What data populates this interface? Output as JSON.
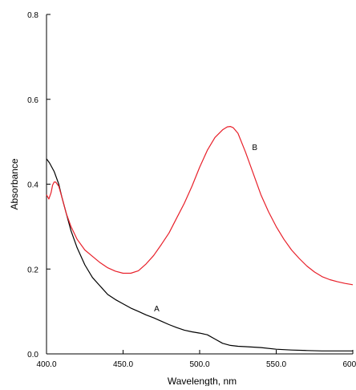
{
  "chart_data": {
    "type": "line",
    "title": "",
    "xlabel": "Wavelength, nm",
    "ylabel": "Absorbance",
    "xlim": [
      400,
      600
    ],
    "ylim": [
      0,
      0.8
    ],
    "x_ticks": [
      400,
      450,
      500,
      550,
      600
    ],
    "x_tick_labels": [
      "400.0",
      "450.0",
      "500.0",
      "550.0",
      "600.0"
    ],
    "y_ticks": [
      0,
      0.2,
      0.4,
      0.6,
      0.8
    ],
    "y_tick_labels": [
      "0.0",
      "0.2",
      "0.4",
      "0.6",
      "0.8"
    ],
    "grid": false,
    "legend": "none",
    "series": [
      {
        "name": "A",
        "color": "#000000",
        "points": [
          [
            400,
            0.46
          ],
          [
            402,
            0.45
          ],
          [
            405,
            0.43
          ],
          [
            408,
            0.4
          ],
          [
            410,
            0.37
          ],
          [
            413,
            0.33
          ],
          [
            416,
            0.29
          ],
          [
            420,
            0.25
          ],
          [
            425,
            0.21
          ],
          [
            430,
            0.18
          ],
          [
            435,
            0.16
          ],
          [
            440,
            0.14
          ],
          [
            445,
            0.128
          ],
          [
            450,
            0.118
          ],
          [
            455,
            0.108
          ],
          [
            460,
            0.1
          ],
          [
            465,
            0.092
          ],
          [
            470,
            0.085
          ],
          [
            475,
            0.077
          ],
          [
            480,
            0.069
          ],
          [
            485,
            0.062
          ],
          [
            490,
            0.056
          ],
          [
            495,
            0.052
          ],
          [
            500,
            0.049
          ],
          [
            505,
            0.045
          ],
          [
            510,
            0.035
          ],
          [
            515,
            0.025
          ],
          [
            520,
            0.02
          ],
          [
            525,
            0.018
          ],
          [
            530,
            0.017
          ],
          [
            540,
            0.015
          ],
          [
            550,
            0.011
          ],
          [
            560,
            0.009
          ],
          [
            570,
            0.008
          ],
          [
            580,
            0.007
          ],
          [
            590,
            0.007
          ],
          [
            600,
            0.007
          ]
        ]
      },
      {
        "name": "B",
        "color": "#e8202a",
        "points": [
          [
            400,
            0.375
          ],
          [
            401.5,
            0.365
          ],
          [
            403,
            0.38
          ],
          [
            404,
            0.398
          ],
          [
            405,
            0.405
          ],
          [
            406,
            0.405
          ],
          [
            408,
            0.395
          ],
          [
            410,
            0.37
          ],
          [
            413,
            0.33
          ],
          [
            416,
            0.3
          ],
          [
            420,
            0.27
          ],
          [
            425,
            0.245
          ],
          [
            430,
            0.23
          ],
          [
            435,
            0.215
          ],
          [
            440,
            0.203
          ],
          [
            445,
            0.195
          ],
          [
            450,
            0.19
          ],
          [
            455,
            0.19
          ],
          [
            460,
            0.196
          ],
          [
            465,
            0.212
          ],
          [
            470,
            0.232
          ],
          [
            475,
            0.258
          ],
          [
            480,
            0.285
          ],
          [
            485,
            0.32
          ],
          [
            490,
            0.355
          ],
          [
            495,
            0.395
          ],
          [
            500,
            0.44
          ],
          [
            505,
            0.48
          ],
          [
            510,
            0.51
          ],
          [
            515,
            0.528
          ],
          [
            518,
            0.535
          ],
          [
            520,
            0.536
          ],
          [
            522,
            0.533
          ],
          [
            525,
            0.52
          ],
          [
            530,
            0.475
          ],
          [
            535,
            0.425
          ],
          [
            540,
            0.375
          ],
          [
            545,
            0.335
          ],
          [
            550,
            0.3
          ],
          [
            555,
            0.27
          ],
          [
            560,
            0.245
          ],
          [
            565,
            0.225
          ],
          [
            570,
            0.207
          ],
          [
            575,
            0.193
          ],
          [
            580,
            0.182
          ],
          [
            585,
            0.175
          ],
          [
            590,
            0.17
          ],
          [
            595,
            0.166
          ],
          [
            600,
            0.163
          ]
        ]
      }
    ],
    "annotations": [
      {
        "text": "A",
        "x": 472,
        "y": 0.1
      },
      {
        "text": "B",
        "x": 536,
        "y": 0.48
      }
    ]
  }
}
